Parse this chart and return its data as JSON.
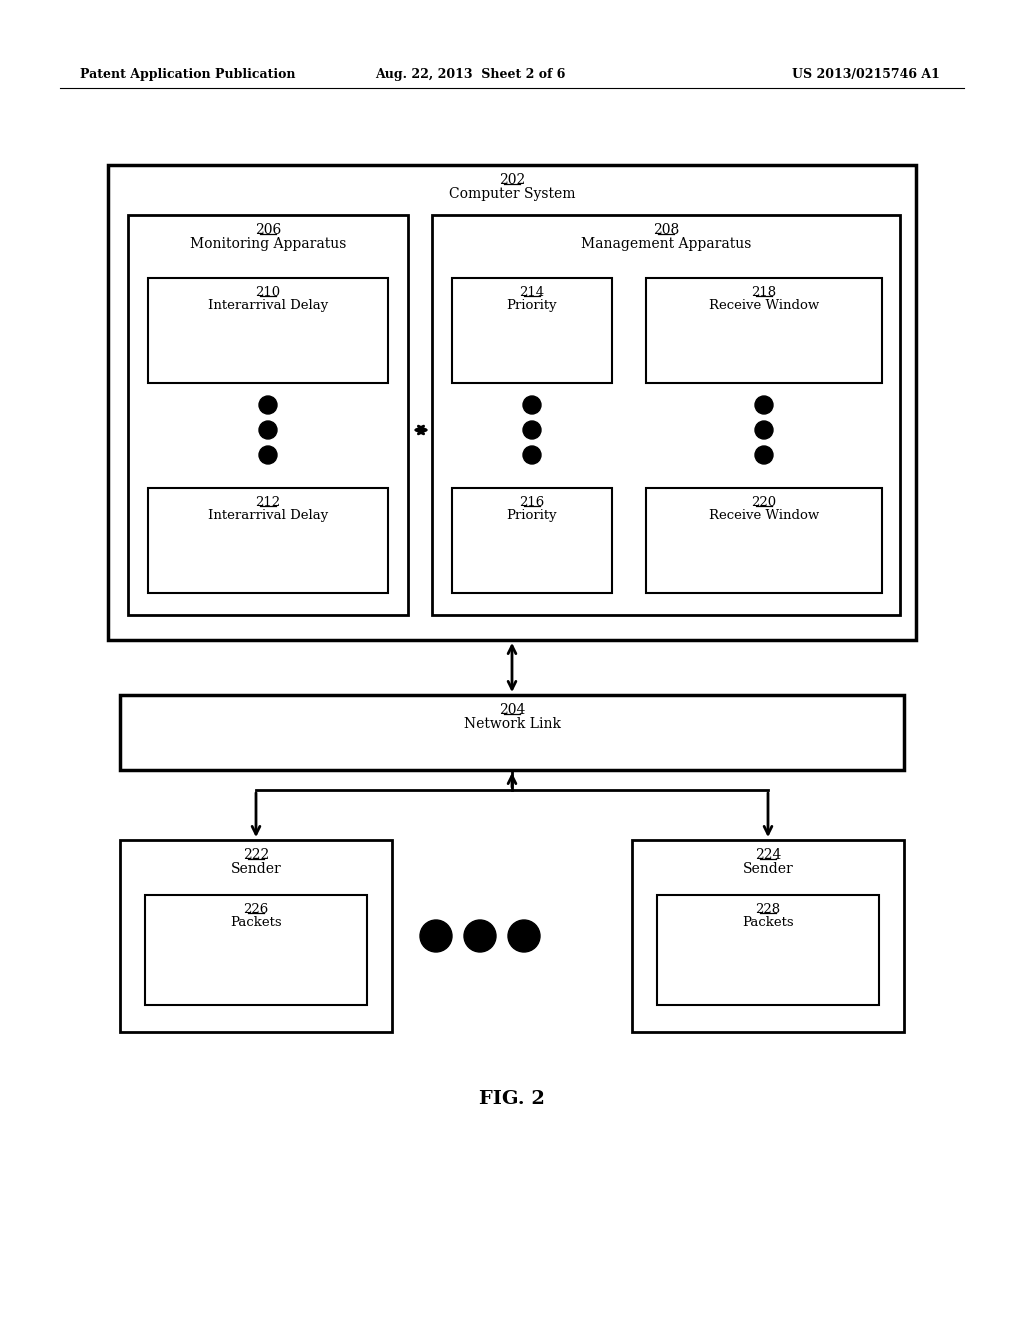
{
  "bg_color": "#ffffff",
  "text_color": "#000000",
  "header_left": "Patent Application Publication",
  "header_mid": "Aug. 22, 2013  Sheet 2 of 6",
  "header_right": "US 2013/0215746 A1",
  "fig_label": "FIG. 2",
  "box_202_num": "202",
  "box_202_lbl": "Computer System",
  "box_206_num": "206",
  "box_206_lbl": "Monitoring Apparatus",
  "box_208_num": "208",
  "box_208_lbl": "Management Apparatus",
  "box_210_num": "210",
  "box_210_lbl": "Interarrival Delay",
  "box_212_num": "212",
  "box_212_lbl": "Interarrival Delay",
  "box_214_num": "214",
  "box_214_lbl": "Priority",
  "box_216_num": "216",
  "box_216_lbl": "Priority",
  "box_218_num": "218",
  "box_218_lbl": "Receive Window",
  "box_220_num": "220",
  "box_220_lbl": "Receive Window",
  "box_204_num": "204",
  "box_204_lbl": "Network Link",
  "box_222_num": "222",
  "box_222_lbl": "Sender",
  "box_224_num": "224",
  "box_224_lbl": "Sender",
  "box_226_num": "226",
  "box_226_lbl": "Packets",
  "box_228_num": "228",
  "box_228_lbl": "Packets"
}
